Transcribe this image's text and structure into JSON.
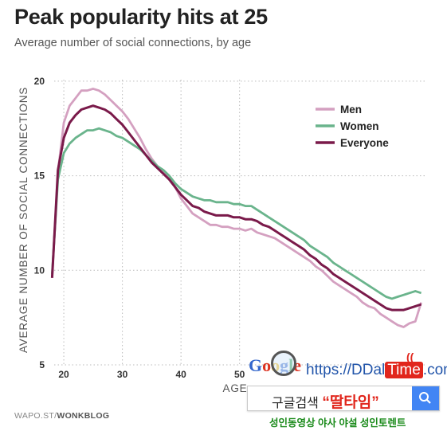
{
  "header": {
    "title": "Peak popularity hits at 25",
    "subtitle": "Average number of social connections, by age"
  },
  "footer": {
    "source_prefix": "WAPO.ST/",
    "source_brand": "WONKBLOG"
  },
  "chart_data": {
    "type": "line",
    "title": "Peak popularity hits at 25",
    "subtitle": "Average number of social connections, by age",
    "xlabel": "AGE",
    "ylabel": "AVERAGE NUMBER OF SOCIAL CONNECTIONS",
    "xlim": [
      17,
      82
    ],
    "ylim": [
      5,
      20.5
    ],
    "x_ticks": [
      20,
      30,
      40,
      50
    ],
    "y_ticks": [
      5,
      10,
      15,
      20
    ],
    "grid": "dotted-horizontal",
    "legend_position": "top-right",
    "x": [
      18,
      19,
      20,
      21,
      22,
      23,
      24,
      25,
      26,
      27,
      28,
      29,
      30,
      31,
      32,
      33,
      34,
      35,
      36,
      37,
      38,
      39,
      40,
      41,
      42,
      43,
      44,
      45,
      46,
      47,
      48,
      49,
      50,
      51,
      52,
      53,
      54,
      55,
      56,
      57,
      58,
      59,
      60,
      61,
      62,
      63,
      64,
      65,
      66,
      67,
      68,
      69,
      70,
      71,
      72,
      73,
      74,
      75,
      76,
      77,
      78,
      79,
      80,
      81
    ],
    "series": [
      {
        "name": "Men",
        "color": "#d4a0c0",
        "values": [
          9.6,
          15.2,
          17.8,
          18.7,
          19.1,
          19.5,
          19.5,
          19.6,
          19.5,
          19.3,
          19.0,
          18.7,
          18.4,
          18.0,
          17.5,
          17.0,
          16.4,
          15.9,
          15.5,
          15.2,
          14.9,
          14.4,
          13.8,
          13.4,
          13.0,
          12.8,
          12.6,
          12.4,
          12.4,
          12.3,
          12.3,
          12.2,
          12.2,
          12.1,
          12.2,
          12.0,
          11.9,
          11.8,
          11.7,
          11.5,
          11.3,
          11.1,
          10.9,
          10.7,
          10.5,
          10.2,
          10.0,
          9.7,
          9.4,
          9.2,
          9.0,
          8.8,
          8.6,
          8.3,
          8.1,
          8.0,
          7.7,
          7.5,
          7.3,
          7.1,
          7.0,
          7.2,
          7.3,
          8.3
        ]
      },
      {
        "name": "Women",
        "color": "#6ab48c",
        "values": [
          9.8,
          14.8,
          16.2,
          16.7,
          17.0,
          17.2,
          17.4,
          17.4,
          17.5,
          17.4,
          17.3,
          17.1,
          17.0,
          16.8,
          16.6,
          16.4,
          16.1,
          15.8,
          15.5,
          15.3,
          15.0,
          14.6,
          14.3,
          14.1,
          13.9,
          13.8,
          13.7,
          13.7,
          13.6,
          13.6,
          13.6,
          13.5,
          13.5,
          13.4,
          13.4,
          13.2,
          13.0,
          12.8,
          12.6,
          12.4,
          12.2,
          12.0,
          11.8,
          11.6,
          11.3,
          11.1,
          10.9,
          10.7,
          10.4,
          10.2,
          10.0,
          9.8,
          9.6,
          9.4,
          9.2,
          9.0,
          8.8,
          8.6,
          8.5,
          8.6,
          8.7,
          8.8,
          8.9,
          8.8
        ]
      },
      {
        "name": "Everyone",
        "color": "#7a1a4a",
        "values": [
          9.6,
          15.3,
          17.0,
          17.8,
          18.2,
          18.5,
          18.6,
          18.7,
          18.6,
          18.5,
          18.3,
          18.0,
          17.7,
          17.3,
          16.9,
          16.5,
          16.1,
          15.7,
          15.4,
          15.1,
          14.8,
          14.4,
          14.0,
          13.7,
          13.4,
          13.3,
          13.1,
          13.0,
          12.9,
          12.9,
          12.9,
          12.8,
          12.8,
          12.7,
          12.7,
          12.6,
          12.4,
          12.3,
          12.1,
          11.9,
          11.7,
          11.5,
          11.3,
          11.1,
          10.8,
          10.6,
          10.3,
          10.1,
          9.8,
          9.6,
          9.4,
          9.2,
          9.0,
          8.8,
          8.6,
          8.4,
          8.2,
          8.0,
          7.9,
          7.9,
          7.9,
          8.0,
          8.1,
          8.2
        ]
      }
    ]
  },
  "ad": {
    "google_letters": [
      "G",
      "o",
      "o",
      "g",
      "l",
      "e"
    ],
    "google_colors": [
      "#3366cc",
      "#dd3322",
      "#f2b500",
      "#3366cc",
      "#229944",
      "#dd3322"
    ],
    "url_prefix": "https://",
    "url_main": "DDal",
    "url_badge": "Time",
    "url_suffix": ".com",
    "search_prefix": "구글검색 ",
    "search_highlight": "“딸타임”",
    "footer_text": "성인동영상 야사 야설 성인토렌트"
  }
}
